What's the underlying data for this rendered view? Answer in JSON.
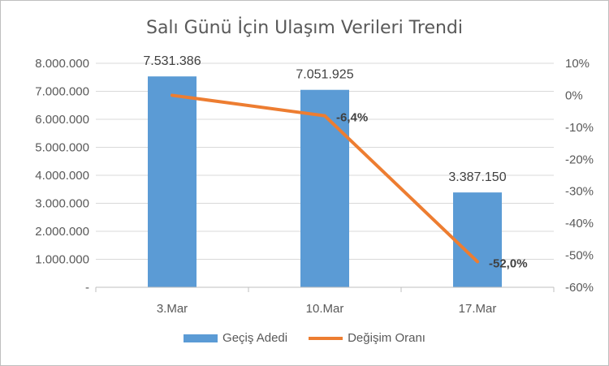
{
  "chart_data": {
    "type": "bar",
    "title": "Salı Günü İçin Ulaşım Verileri Trendi",
    "categories": [
      "3.Mar",
      "10.Mar",
      "17.Mar"
    ],
    "series": [
      {
        "name": "Geçiş Adedi",
        "type": "bar",
        "axis": "left",
        "values": [
          7531386,
          7051925,
          3387150
        ],
        "labels": [
          "7.531.386",
          "7.051.925",
          "3.387.150"
        ],
        "color": "#5b9bd5"
      },
      {
        "name": "Değişim Oranı",
        "type": "line",
        "axis": "right",
        "values": [
          0.0,
          -6.4,
          -52.0
        ],
        "labels": [
          "",
          "-6,4%",
          "-52,0%"
        ],
        "color": "#ed7d31"
      }
    ],
    "y_left": {
      "min": 0,
      "max": 8000000,
      "ticks": [
        0,
        1000000,
        2000000,
        3000000,
        4000000,
        5000000,
        6000000,
        7000000,
        8000000
      ],
      "tick_labels": [
        "-",
        "1.000.000",
        "2.000.000",
        "3.000.000",
        "4.000.000",
        "5.000.000",
        "6.000.000",
        "7.000.000",
        "8.000.000"
      ]
    },
    "y_right": {
      "min": -60,
      "max": 10,
      "ticks": [
        10,
        0,
        -10,
        -20,
        -30,
        -40,
        -50,
        -60
      ],
      "tick_labels": [
        "10%",
        "0%",
        "-10%",
        "-20%",
        "-30%",
        "-40%",
        "-50%",
        "-60%"
      ]
    },
    "grid": true,
    "legend_position": "bottom"
  }
}
